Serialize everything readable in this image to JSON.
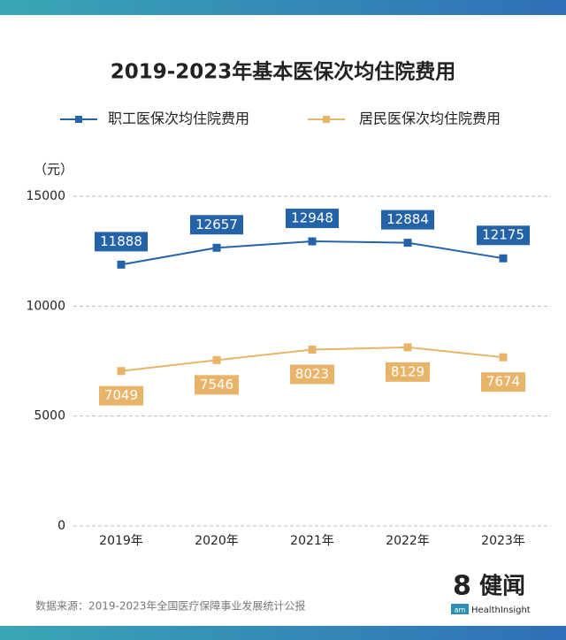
{
  "chart_data": {
    "type": "line",
    "title": "2019-2023年基本医保次均住院费用",
    "y_unit": "（元）",
    "categories": [
      "2019年",
      "2020年",
      "2021年",
      "2022年",
      "2023年"
    ],
    "series": [
      {
        "name": "职工医保次均住院费用",
        "color": "#2563a8",
        "values": [
          11888,
          12657,
          12948,
          12884,
          12175
        ]
      },
      {
        "name": "居民医保次均住院费用",
        "color": "#e8b46a",
        "values": [
          7049,
          7546,
          8023,
          8129,
          7674
        ]
      }
    ],
    "ylim": [
      0,
      15000
    ],
    "yticks": [
      0,
      5000,
      10000,
      15000
    ],
    "grid": true,
    "source": "数据来源：2019-2023年全国医疗保障事业发展统计公报",
    "logo": {
      "mark": "8",
      "name": "健闻",
      "small": "am",
      "sub": "HealthInsight"
    }
  }
}
